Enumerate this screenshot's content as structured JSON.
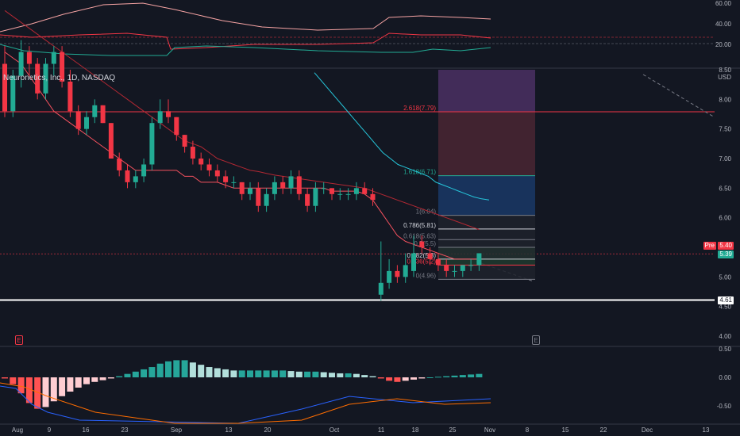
{
  "legend": {
    "title": "Neuronetics, Inc., 1D, NASDAQ"
  },
  "price_axis": {
    "currency": "USD",
    "ticks": [
      "8.50",
      "8.00",
      "7.50",
      "7.00",
      "6.50",
      "6.00",
      "5.50",
      "5.00",
      "4.50",
      "4.00"
    ],
    "last_price": "5.39",
    "pre_label": "Pre",
    "pre_price": "5.40",
    "line_price": "4.61"
  },
  "top_axis": {
    "ticks": [
      "60.00",
      "40.00",
      "20.00"
    ]
  },
  "macd_axis": {
    "ticks": [
      "0.50",
      "0.00",
      "-0.50"
    ]
  },
  "time_axis": {
    "ticks": [
      "Aug",
      "9",
      "16",
      "23",
      "Sep",
      "13",
      "20",
      "Oct",
      "11",
      "18",
      "25",
      "Nov",
      "8",
      "15",
      "22",
      "Dec",
      "13"
    ]
  },
  "fib_levels": [
    {
      "label": "2.618(7.79)",
      "price": 7.79,
      "color": "#f23645"
    },
    {
      "label": "1.618(6.71)",
      "price": 6.71,
      "color": "#22ab94"
    },
    {
      "label": "1(6.04)",
      "price": 6.04,
      "color": "#787b86"
    },
    {
      "label": "0.786(5.81)",
      "price": 5.81,
      "color": "#d1d4dc"
    },
    {
      "label": "0.618(5.63)",
      "price": 5.63,
      "color": "#787b86"
    },
    {
      "label": "0.5(5.5)",
      "price": 5.5,
      "color": "#787b86"
    },
    {
      "label": "0.382(5.3)",
      "price": 5.3,
      "color": "#d1d4dc"
    },
    {
      "label": "0.236(5.2)",
      "price": 5.2,
      "color": "#f23645"
    },
    {
      "label": "0(4.96)",
      "price": 4.96,
      "color": "#787b86"
    }
  ],
  "markers": {
    "earnings_left": "E",
    "earnings_right": "E"
  },
  "candles": [
    [
      8.6,
      8.9,
      7.7,
      7.8
    ],
    [
      7.8,
      8.5,
      7.7,
      8.4
    ],
    [
      8.4,
      9.0,
      8.2,
      8.8
    ],
    [
      8.8,
      8.9,
      8.4,
      8.6
    ],
    [
      8.6,
      8.7,
      8.0,
      8.1
    ],
    [
      8.1,
      8.7,
      8.0,
      8.6
    ],
    [
      8.6,
      8.9,
      8.4,
      8.8
    ],
    [
      8.8,
      8.9,
      8.2,
      8.3
    ],
    [
      8.3,
      8.5,
      7.7,
      7.8
    ],
    [
      7.8,
      7.9,
      7.4,
      7.5
    ],
    [
      7.5,
      7.8,
      7.4,
      7.7
    ],
    [
      7.7,
      8.0,
      7.6,
      7.9
    ],
    [
      7.9,
      7.9,
      7.6,
      7.6
    ],
    [
      7.6,
      7.6,
      7.0,
      7.0
    ],
    [
      7.0,
      7.1,
      6.7,
      6.8
    ],
    [
      6.8,
      6.9,
      6.5,
      6.6
    ],
    [
      6.6,
      6.8,
      6.5,
      6.7
    ],
    [
      6.7,
      7.0,
      6.6,
      6.9
    ],
    [
      6.9,
      7.7,
      6.8,
      7.6
    ],
    [
      7.6,
      8.0,
      7.5,
      7.8
    ],
    [
      7.8,
      8.0,
      7.6,
      7.7
    ],
    [
      7.7,
      7.7,
      7.3,
      7.4
    ],
    [
      7.4,
      7.4,
      7.1,
      7.2
    ],
    [
      7.2,
      7.3,
      6.9,
      7.0
    ],
    [
      7.0,
      7.1,
      6.8,
      6.9
    ],
    [
      6.9,
      7.0,
      6.7,
      6.8
    ],
    [
      6.8,
      6.9,
      6.6,
      6.7
    ],
    [
      6.7,
      6.8,
      6.5,
      6.6
    ],
    [
      6.6,
      6.7,
      6.5,
      6.6
    ],
    [
      6.6,
      6.6,
      6.3,
      6.4
    ],
    [
      6.4,
      6.6,
      6.3,
      6.5
    ],
    [
      6.5,
      6.6,
      6.1,
      6.2
    ],
    [
      6.2,
      6.5,
      6.1,
      6.4
    ],
    [
      6.4,
      6.7,
      6.3,
      6.6
    ],
    [
      6.6,
      6.7,
      6.4,
      6.5
    ],
    [
      6.5,
      6.8,
      6.4,
      6.7
    ],
    [
      6.7,
      6.8,
      6.3,
      6.4
    ],
    [
      6.4,
      6.5,
      6.1,
      6.2
    ],
    [
      6.2,
      6.6,
      6.1,
      6.5
    ],
    [
      6.5,
      6.6,
      6.4,
      6.5
    ],
    [
      6.5,
      6.5,
      6.3,
      6.4
    ],
    [
      6.4,
      6.5,
      6.3,
      6.4
    ],
    [
      6.4,
      6.5,
      6.3,
      6.4
    ],
    [
      6.4,
      6.6,
      6.3,
      6.5
    ],
    [
      6.5,
      6.6,
      6.4,
      6.4
    ],
    [
      6.4,
      6.5,
      6.2,
      6.3
    ],
    [
      4.7,
      5.6,
      4.6,
      4.9
    ],
    [
      4.9,
      5.3,
      4.8,
      5.1
    ],
    [
      5.1,
      5.2,
      4.9,
      5.0
    ],
    [
      5.0,
      5.4,
      4.9,
      5.2
    ],
    [
      5.1,
      5.7,
      5.0,
      5.4
    ],
    [
      5.6,
      5.7,
      5.4,
      5.5
    ],
    [
      5.4,
      5.5,
      5.2,
      5.3
    ],
    [
      5.3,
      5.4,
      5.1,
      5.2
    ],
    [
      5.2,
      5.3,
      5.0,
      5.1
    ],
    [
      5.1,
      5.2,
      5.0,
      5.1
    ],
    [
      5.1,
      5.2,
      5.0,
      5.2
    ],
    [
      5.2,
      5.3,
      5.1,
      5.2
    ],
    [
      5.2,
      5.4,
      5.1,
      5.4
    ]
  ],
  "ema_fast": [
    8.8,
    8.7,
    8.6,
    8.4,
    8.2,
    8.0,
    7.8,
    7.7,
    7.6,
    7.5,
    7.4,
    7.3,
    7.2,
    7.1,
    7.0,
    6.9,
    6.8,
    6.8,
    6.8,
    6.8,
    6.8,
    6.8,
    6.7,
    6.7,
    6.6,
    6.6,
    6.6,
    6.55,
    6.5,
    6.5,
    6.5,
    6.5,
    6.5,
    6.5,
    6.5,
    6.5,
    6.5,
    6.5,
    6.5,
    6.5,
    6.45,
    6.45,
    6.45,
    6.45,
    6.4,
    6.3,
    6.1,
    5.9,
    5.7,
    5.6,
    5.55,
    5.5,
    5.45,
    5.4,
    5.35,
    5.3,
    5.3,
    5.3,
    5.3
  ],
  "ema_slow": [
    9.5,
    9.4,
    9.3,
    9.2,
    9.1,
    9.0,
    8.9,
    8.8,
    8.7,
    8.6,
    8.5,
    8.4,
    8.3,
    8.2,
    8.1,
    8.0,
    7.9,
    7.8,
    7.7,
    7.6,
    7.5,
    7.4,
    7.3,
    7.25,
    7.2,
    7.1,
    7.0,
    6.95,
    6.9,
    6.85,
    6.8,
    6.78,
    6.75,
    6.72,
    6.7,
    6.68,
    6.66,
    6.64,
    6.62,
    6.6,
    6.58,
    6.56,
    6.54,
    6.52,
    6.5,
    6.45,
    6.4,
    6.35,
    6.3,
    6.25,
    6.2,
    6.15,
    6.1,
    6.05,
    6.0,
    5.95,
    5.9,
    5.85,
    5.8
  ],
  "sma_cyan": [
    null,
    null,
    null,
    null,
    null,
    null,
    null,
    null,
    null,
    null,
    null,
    null,
    null,
    null,
    null,
    null,
    null,
    null,
    null,
    null,
    null,
    null,
    null,
    null,
    null,
    null,
    null,
    null,
    null,
    null,
    null,
    null,
    null,
    null,
    null,
    8.45,
    8.3,
    8.15,
    8.0,
    7.85,
    7.7,
    7.55,
    7.4,
    7.25,
    7.1,
    7.0,
    6.9,
    6.85,
    6.8,
    6.75,
    6.7,
    6.6,
    6.55,
    6.5,
    6.45,
    6.4,
    6.35,
    6.32,
    6.3
  ],
  "macd_hist": [
    -0.02,
    -0.12,
    -0.28,
    -0.45,
    -0.55,
    -0.52,
    -0.42,
    -0.33,
    -0.25,
    -0.18,
    -0.12,
    -0.08,
    -0.05,
    -0.02,
    0.02,
    0.06,
    0.1,
    0.14,
    0.18,
    0.24,
    0.28,
    0.3,
    0.3,
    0.26,
    0.22,
    0.18,
    0.16,
    0.14,
    0.12,
    0.12,
    0.12,
    0.12,
    0.12,
    0.12,
    0.12,
    0.11,
    0.1,
    0.1,
    0.1,
    0.09,
    0.08,
    0.07,
    0.07,
    0.06,
    0.04,
    0.02,
    -0.02,
    -0.06,
    -0.08,
    -0.06,
    -0.04,
    -0.02,
    0.0,
    0.01,
    0.02,
    0.03,
    0.04,
    0.05,
    0.06
  ]
}
